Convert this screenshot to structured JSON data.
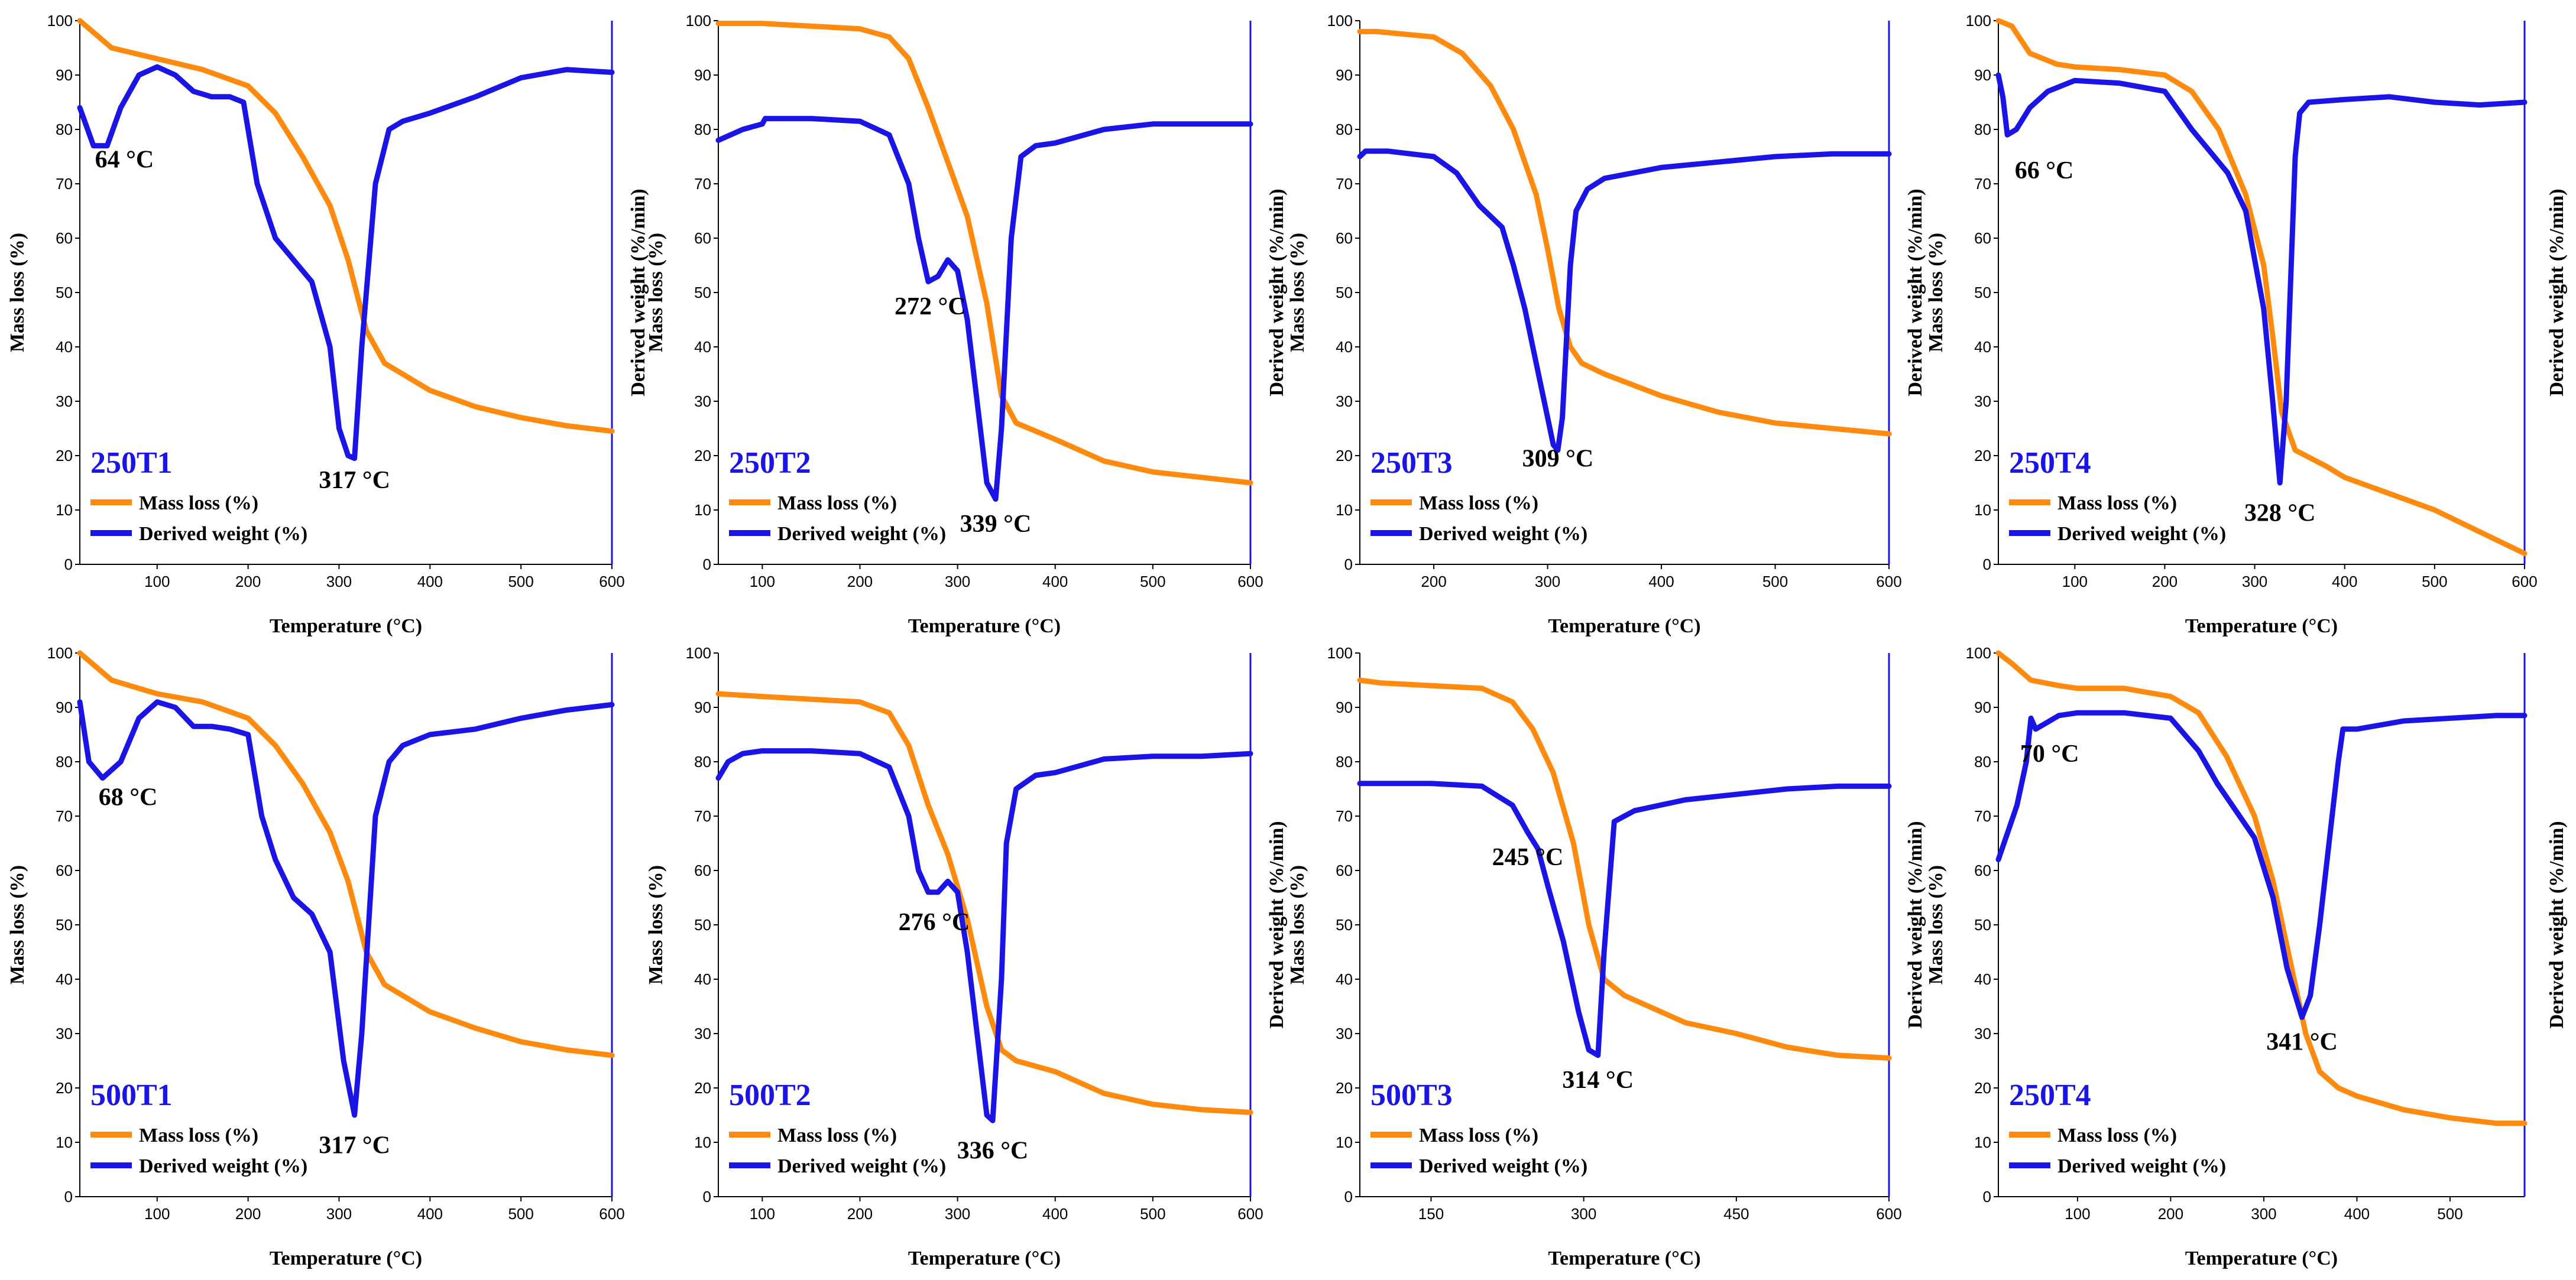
{
  "colors": {
    "mass": "#ff8a0d",
    "derived": "#1a14e6",
    "axis": "#000000",
    "right_axis": "#1a14e6"
  },
  "chart_data": [
    {
      "type": "line",
      "title": "250T1",
      "xlabel": "Temperature (°C)",
      "ylabel": "Mass loss (%)",
      "ylabel_right": "Derived weight (%/min)",
      "xlim": [
        15,
        600
      ],
      "ylim": [
        0,
        100
      ],
      "xticks": [
        100,
        200,
        300,
        400,
        500,
        600
      ],
      "yticks": [
        0,
        10,
        20,
        30,
        40,
        50,
        60,
        70,
        80,
        90,
        100
      ],
      "legend": [
        "Mass loss (%)",
        "Derived weight (%)"
      ],
      "series": [
        {
          "name": "Mass loss (%)",
          "x": [
            15,
            50,
            100,
            150,
            200,
            230,
            260,
            290,
            310,
            330,
            350,
            400,
            450,
            500,
            550,
            600
          ],
          "y": [
            100,
            95,
            93,
            91,
            88,
            83,
            75,
            66,
            56,
            43,
            37,
            32,
            29,
            27,
            25.5,
            24.5
          ]
        },
        {
          "name": "Derived weight (%)",
          "x": [
            15,
            30,
            45,
            60,
            80,
            100,
            120,
            140,
            160,
            180,
            195,
            210,
            230,
            250,
            270,
            290,
            300,
            310,
            317,
            325,
            340,
            355,
            370,
            400,
            450,
            500,
            550,
            600
          ],
          "y": [
            84,
            77,
            77,
            84,
            90,
            91.5,
            90,
            87,
            86,
            86,
            85,
            70,
            60,
            56,
            52,
            40,
            25,
            20,
            19.5,
            40,
            70,
            80,
            81.5,
            83,
            86,
            89.5,
            91,
            90.5
          ]
        }
      ],
      "annotations": [
        {
          "text": "64 °C",
          "x": 64,
          "y": 73
        },
        {
          "text": "317 °C",
          "x": 317,
          "y": 14
        }
      ]
    },
    {
      "type": "line",
      "title": "250T2",
      "xlabel": "Temperature (°C)",
      "ylabel": "Mass loss (%)",
      "ylabel_right": "Derived weight (%/min)",
      "xlim": [
        55,
        600
      ],
      "ylim": [
        0,
        100
      ],
      "xticks": [
        100,
        200,
        300,
        400,
        500,
        600
      ],
      "yticks": [
        0,
        10,
        20,
        30,
        40,
        50,
        60,
        70,
        80,
        90,
        100
      ],
      "legend": [
        "Mass loss (%)",
        "Derived weight (%)"
      ],
      "series": [
        {
          "name": "Mass loss (%)",
          "x": [
            55,
            100,
            150,
            200,
            230,
            250,
            270,
            290,
            310,
            330,
            345,
            360,
            400,
            450,
            500,
            550,
            600
          ],
          "y": [
            99.5,
            99.5,
            99,
            98.5,
            97,
            93,
            84,
            74,
            64,
            48,
            31,
            26,
            23,
            19,
            17,
            16,
            15
          ]
        },
        {
          "name": "Derived weight (%)",
          "x": [
            55,
            80,
            100,
            103,
            110,
            150,
            200,
            230,
            250,
            260,
            270,
            280,
            290,
            300,
            310,
            320,
            330,
            339,
            345,
            355,
            365,
            380,
            400,
            450,
            500,
            550,
            600
          ],
          "y": [
            78,
            80,
            81,
            82,
            82,
            82,
            81.5,
            79,
            70,
            60,
            52,
            53,
            56,
            54,
            45,
            30,
            15,
            12,
            25,
            60,
            75,
            77,
            77.5,
            80,
            81,
            81,
            81
          ]
        }
      ],
      "annotations": [
        {
          "text": "272 °C",
          "x": 272,
          "y": 46
        },
        {
          "text": "339 °C",
          "x": 339,
          "y": 6
        }
      ]
    },
    {
      "type": "line",
      "title": "250T3",
      "xlabel": "Temperature (°C)",
      "ylabel": "Mass loss (%)",
      "ylabel_right": "Derived weight (%/min)",
      "xlim": [
        135,
        600
      ],
      "ylim": [
        0,
        100
      ],
      "xticks": [
        200,
        300,
        400,
        500,
        600
      ],
      "yticks": [
        0,
        10,
        20,
        30,
        40,
        50,
        60,
        70,
        80,
        90,
        100
      ],
      "legend": [
        "Mass loss (%)",
        "Derived weight (%)"
      ],
      "series": [
        {
          "name": "Mass loss (%)",
          "x": [
            135,
            150,
            200,
            225,
            250,
            270,
            290,
            300,
            310,
            320,
            330,
            350,
            400,
            450,
            500,
            550,
            600
          ],
          "y": [
            98,
            98,
            97,
            94,
            88,
            80,
            68,
            58,
            47,
            40,
            37,
            35,
            31,
            28,
            26,
            25,
            24
          ]
        },
        {
          "name": "Derived weight (%)",
          "x": [
            135,
            140,
            160,
            200,
            220,
            240,
            260,
            270,
            280,
            290,
            300,
            305,
            309,
            313,
            320,
            325,
            335,
            350,
            400,
            450,
            500,
            550,
            600
          ],
          "y": [
            75,
            76,
            76,
            75,
            72,
            66,
            62,
            55,
            47,
            37,
            27,
            22,
            21,
            27,
            55,
            65,
            69,
            71,
            73,
            74,
            75,
            75.5,
            75.5
          ]
        }
      ],
      "annotations": [
        {
          "text": "309 °C",
          "x": 309,
          "y": 18
        }
      ]
    },
    {
      "type": "line",
      "title": "250T4",
      "xlabel": "Temperature (°C)",
      "ylabel": "Mass loss (%)",
      "ylabel_right": "Derived weight (%/min)",
      "xlim": [
        15,
        600
      ],
      "ylim": [
        0,
        100
      ],
      "xticks": [
        100,
        200,
        300,
        400,
        500,
        600
      ],
      "yticks": [
        0,
        10,
        20,
        30,
        40,
        50,
        60,
        70,
        80,
        90,
        100
      ],
      "legend": [
        "Mass loss (%)",
        "Derived weight (%)"
      ],
      "series": [
        {
          "name": "Mass loss (%)",
          "x": [
            15,
            30,
            50,
            80,
            100,
            150,
            200,
            230,
            260,
            290,
            310,
            320,
            330,
            345,
            380,
            400,
            450,
            500,
            550,
            600
          ],
          "y": [
            100,
            99,
            94,
            92,
            91.5,
            91,
            90,
            87,
            80,
            68,
            55,
            42,
            28,
            21,
            18,
            16,
            13,
            10,
            6,
            2
          ]
        },
        {
          "name": "Derived weight (%)",
          "x": [
            15,
            20,
            25,
            35,
            50,
            70,
            100,
            150,
            200,
            230,
            250,
            270,
            290,
            310,
            320,
            328,
            335,
            345,
            350,
            360,
            400,
            450,
            500,
            550,
            600
          ],
          "y": [
            90,
            86,
            79,
            80,
            84,
            87,
            89,
            88.5,
            87,
            80,
            76,
            72,
            65,
            47,
            30,
            15,
            30,
            75,
            83,
            85,
            85.5,
            86,
            85,
            84.5,
            85
          ]
        }
      ],
      "annotations": [
        {
          "text": "66 °C",
          "x": 66,
          "y": 71
        },
        {
          "text": "328 °C",
          "x": 328,
          "y": 8
        }
      ]
    },
    {
      "type": "line",
      "title": "500T1",
      "xlabel": "Temperature (°C)",
      "ylabel": "Mass loss (%)",
      "ylabel_right": "",
      "xlim": [
        15,
        600
      ],
      "ylim": [
        0,
        100
      ],
      "xticks": [
        100,
        200,
        300,
        400,
        500,
        600
      ],
      "yticks": [
        0,
        10,
        20,
        30,
        40,
        50,
        60,
        70,
        80,
        90,
        100
      ],
      "legend": [
        "Mass loss (%)",
        "Derived weight (%)"
      ],
      "series": [
        {
          "name": "Mass loss (%)",
          "x": [
            15,
            50,
            100,
            150,
            200,
            230,
            260,
            290,
            310,
            330,
            350,
            400,
            450,
            500,
            550,
            600
          ],
          "y": [
            100,
            95,
            92.5,
            91,
            88,
            83,
            76,
            67,
            58,
            45,
            39,
            34,
            31,
            28.5,
            27,
            26
          ]
        },
        {
          "name": "Derived weight (%)",
          "x": [
            15,
            25,
            40,
            60,
            80,
            100,
            120,
            140,
            160,
            180,
            200,
            215,
            230,
            250,
            270,
            290,
            305,
            317,
            325,
            340,
            355,
            370,
            400,
            450,
            500,
            550,
            600
          ],
          "y": [
            91,
            80,
            77,
            80,
            88,
            91,
            90,
            86.5,
            86.5,
            86,
            85,
            70,
            62,
            55,
            52,
            45,
            25,
            15,
            30,
            70,
            80,
            83,
            85,
            86,
            88,
            89.5,
            90.5
          ]
        }
      ],
      "annotations": [
        {
          "text": "68 °C",
          "x": 68,
          "y": 72
        },
        {
          "text": "317 °C",
          "x": 317,
          "y": 8
        }
      ]
    },
    {
      "type": "line",
      "title": "500T2",
      "xlabel": "Temperature (°C)",
      "ylabel": "Mass loss (%)",
      "ylabel_right": "Derived weight (%/min)",
      "xlim": [
        55,
        600
      ],
      "ylim": [
        0,
        100
      ],
      "xticks": [
        100,
        200,
        300,
        400,
        500,
        600
      ],
      "yticks": [
        0,
        10,
        20,
        30,
        40,
        50,
        60,
        70,
        80,
        90,
        100
      ],
      "legend": [
        "Mass loss (%)",
        "Derived weight (%)"
      ],
      "series": [
        {
          "name": "Mass loss (%)",
          "x": [
            55,
            100,
            150,
            200,
            230,
            250,
            270,
            290,
            310,
            330,
            345,
            360,
            400,
            450,
            500,
            550,
            600
          ],
          "y": [
            92.5,
            92,
            91.5,
            91,
            89,
            83,
            72,
            63,
            51,
            35,
            27,
            25,
            23,
            19,
            17,
            16,
            15.5
          ]
        },
        {
          "name": "Derived weight (%)",
          "x": [
            55,
            65,
            80,
            100,
            150,
            200,
            230,
            250,
            260,
            270,
            280,
            290,
            300,
            310,
            320,
            330,
            336,
            345,
            350,
            360,
            380,
            400,
            450,
            500,
            550,
            600
          ],
          "y": [
            77,
            80,
            81.5,
            82,
            82,
            81.5,
            79,
            70,
            60,
            56,
            56,
            58,
            56,
            45,
            30,
            15,
            14,
            40,
            65,
            75,
            77.5,
            78,
            80.5,
            81,
            81,
            81.5
          ]
        }
      ],
      "annotations": [
        {
          "text": "276 °C",
          "x": 276,
          "y": 49
        },
        {
          "text": "336 °C",
          "x": 336,
          "y": 7
        }
      ]
    },
    {
      "type": "line",
      "title": "500T3",
      "xlabel": "Temperature (°C)",
      "ylabel": "Mass loss (%)",
      "ylabel_right": "Derived weight (%/min)",
      "xlim": [
        80,
        600
      ],
      "ylim": [
        0,
        100
      ],
      "xticks": [
        150,
        300,
        450,
        600
      ],
      "yticks": [
        0,
        10,
        20,
        30,
        40,
        50,
        60,
        70,
        80,
        90,
        100
      ],
      "legend": [
        "Mass loss (%)",
        "Derived weight (%)"
      ],
      "series": [
        {
          "name": "Mass loss (%)",
          "x": [
            80,
            100,
            150,
            200,
            230,
            250,
            270,
            290,
            305,
            320,
            340,
            400,
            450,
            500,
            550,
            600
          ],
          "y": [
            95,
            94.5,
            94,
            93.5,
            91,
            86,
            78,
            65,
            50,
            40,
            37,
            32,
            30,
            27.5,
            26,
            25.5
          ]
        },
        {
          "name": "Derived weight (%)",
          "x": [
            80,
            100,
            150,
            200,
            230,
            245,
            255,
            265,
            280,
            295,
            305,
            314,
            320,
            330,
            340,
            350,
            400,
            450,
            500,
            550,
            600
          ],
          "y": [
            76,
            76,
            76,
            75.5,
            72,
            67,
            64,
            57,
            47,
            34,
            27,
            26,
            45,
            69,
            70,
            71,
            73,
            74,
            75,
            75.5,
            75.5
          ]
        }
      ],
      "annotations": [
        {
          "text": "245 °C",
          "x": 245,
          "y": 61
        },
        {
          "text": "314 °C",
          "x": 314,
          "y": 20
        }
      ]
    },
    {
      "type": "line",
      "title": "250T4",
      "xlabel": "Temperature (°C)",
      "ylabel": "Mass loss (%)",
      "ylabel_right": "Derived weight (%/min)",
      "xlim": [
        15,
        580
      ],
      "ylim": [
        0,
        100
      ],
      "xticks": [
        100,
        200,
        300,
        400,
        500
      ],
      "yticks": [
        0,
        10,
        20,
        30,
        40,
        50,
        60,
        70,
        80,
        90,
        100
      ],
      "legend": [
        "Mass loss (%)",
        "Derived weight (%)"
      ],
      "series": [
        {
          "name": "Mass loss (%)",
          "x": [
            15,
            30,
            50,
            80,
            100,
            150,
            200,
            230,
            260,
            290,
            310,
            330,
            345,
            360,
            380,
            400,
            450,
            500,
            550,
            580
          ],
          "y": [
            100,
            98,
            95,
            94,
            93.5,
            93.5,
            92,
            89,
            81,
            70,
            58,
            42,
            30,
            23,
            20,
            18.5,
            16,
            14.5,
            13.5,
            13.5
          ]
        },
        {
          "name": "Derived weight (%)",
          "x": [
            15,
            25,
            35,
            45,
            50,
            55,
            65,
            80,
            100,
            150,
            200,
            230,
            250,
            270,
            290,
            310,
            325,
            341,
            350,
            360,
            370,
            380,
            385,
            400,
            450,
            500,
            550,
            580
          ],
          "y": [
            62,
            67,
            72,
            80,
            88,
            86,
            87,
            88.5,
            89,
            89,
            88,
            82,
            76,
            71,
            66,
            55,
            42,
            33,
            37,
            50,
            65,
            80,
            86,
            86,
            87.5,
            88,
            88.5,
            88.5
          ]
        }
      ],
      "annotations": [
        {
          "text": "70 °C",
          "x": 70,
          "y": 80
        },
        {
          "text": "341 °C",
          "x": 341,
          "y": 27
        }
      ]
    }
  ]
}
